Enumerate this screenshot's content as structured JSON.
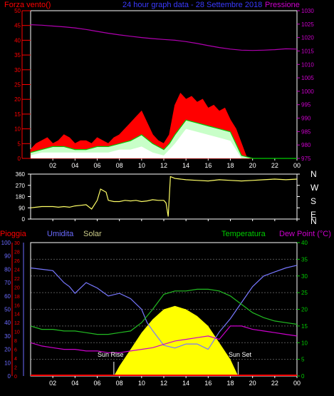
{
  "colors": {
    "background": "#000000",
    "axis_red": "#ff0000",
    "axis_magenta": "#cc00cc",
    "axis_blue": "#6b6bff",
    "axis_green": "#00cc00",
    "wind": "#ff0000",
    "gust": "#c8ffc8",
    "wind_avg": "#00cc00",
    "pressure": "#b000b0",
    "direction": "#ffff66",
    "humidity": "#7777ff",
    "temperature": "#22bb22",
    "dewpoint": "#cc00cc",
    "solar": "#ffff00",
    "rain": "#ff0000",
    "grid": "#555555"
  },
  "header": {
    "wind_label": "Forza vento()",
    "title": "24 hour graph data - 28 Settembre 2018",
    "pressure_label": "Pressione"
  },
  "panel3_labels": {
    "rain": "Pioggia",
    "humidity": "Umidita",
    "solar": "Solar",
    "temperature": "Temperatura",
    "dewpoint": "Dew Point (°C)"
  },
  "compass": [
    "N",
    "W",
    "S",
    "E",
    "N"
  ],
  "x_ticks": [
    "02",
    "04",
    "06",
    "08",
    "10",
    "12",
    "14",
    "16",
    "18",
    "20",
    "22",
    "00"
  ],
  "annotations": {
    "sunrise": "Sun Rise",
    "sunset": "Sun Set"
  },
  "chart_data": [
    {
      "type": "line",
      "title": "24 hour graph data - 28 Settembre 2018",
      "x_label": "hour",
      "x_range": [
        0,
        24
      ],
      "y_left_label": "Forza vento()",
      "y_left_ticks": [
        0,
        5,
        10,
        15,
        20,
        25,
        30,
        35,
        40,
        45,
        50
      ],
      "y_left_range": [
        0,
        50
      ],
      "y_right_label": "Pressione",
      "y_right_ticks": [
        975,
        980,
        985,
        990,
        995,
        1000,
        1005,
        1010,
        1015,
        1020,
        1025,
        1030
      ],
      "y_right_range": [
        975,
        1030
      ],
      "series": [
        {
          "name": "Pressione",
          "axis": "right",
          "x": [
            0,
            1,
            2,
            3,
            4,
            5,
            6,
            7,
            8,
            9,
            10,
            11,
            12,
            13,
            14,
            15,
            16,
            17,
            18,
            19,
            20,
            21,
            22,
            23,
            24
          ],
          "values": [
            1024.8,
            1024.6,
            1024.3,
            1024.0,
            1023.6,
            1023.0,
            1022.3,
            1021.6,
            1021.0,
            1020.5,
            1020.0,
            1019.6,
            1019.3,
            1019.0,
            1018.5,
            1017.8,
            1017.0,
            1016.3,
            1015.7,
            1015.3,
            1015.2,
            1015.3,
            1015.5,
            1015.8,
            1015.7
          ]
        },
        {
          "name": "Wind gust",
          "x": [
            0,
            0.5,
            1,
            1.5,
            2,
            2.5,
            3,
            3.5,
            4,
            4.5,
            5,
            5.5,
            6,
            6.5,
            7,
            7.5,
            8,
            8.5,
            9,
            9.5,
            10,
            10.5,
            11,
            11.5,
            12,
            12.5,
            13,
            13.5,
            14,
            14.5,
            15,
            15.5,
            16,
            16.5,
            17,
            17.5,
            18,
            18.5,
            19,
            19.5,
            20,
            24
          ],
          "values": [
            3,
            5,
            6,
            7,
            5,
            6,
            8,
            7,
            5,
            6,
            6,
            5,
            7,
            6,
            5,
            7,
            8,
            10,
            12,
            14,
            16,
            12,
            8,
            6,
            5,
            8,
            18,
            22,
            20,
            21,
            19,
            20,
            17,
            18,
            16,
            17,
            13,
            10,
            5,
            0,
            0,
            0
          ]
        },
        {
          "name": "Wind avg",
          "x": [
            0,
            1,
            2,
            3,
            4,
            5,
            6,
            7,
            8,
            9,
            10,
            11,
            12,
            12.5,
            13,
            14,
            15,
            16,
            17,
            18,
            18.5,
            19,
            20,
            24
          ],
          "values": [
            2,
            3,
            4,
            4,
            3,
            3,
            4,
            4,
            5,
            6,
            8,
            5,
            3,
            5,
            8,
            13,
            12,
            11,
            10,
            9,
            5,
            1,
            0,
            0
          ]
        },
        {
          "name": "Wind min",
          "x": [
            0,
            1,
            2,
            3,
            4,
            5,
            6,
            7,
            8,
            9,
            10,
            11,
            12,
            12.5,
            13,
            14,
            15,
            16,
            17,
            18,
            18.5,
            19,
            20,
            24
          ],
          "values": [
            1,
            2,
            2,
            2,
            2,
            2,
            2,
            2,
            3,
            3,
            4,
            2,
            1,
            3,
            5,
            10,
            9,
            8,
            7,
            6,
            3,
            0,
            0,
            0
          ]
        }
      ]
    },
    {
      "type": "line",
      "title": "",
      "x_range": [
        0,
        24
      ],
      "y_ticks": [
        0,
        90,
        180,
        270,
        360
      ],
      "y_range": [
        0,
        360
      ],
      "series": [
        {
          "name": "Wind direction",
          "x": [
            0,
            0.5,
            1,
            1.5,
            2,
            2.5,
            3,
            3.5,
            4,
            4.5,
            5,
            5.5,
            6,
            6.3,
            6.8,
            7,
            7.5,
            8,
            8.5,
            9,
            9.5,
            10,
            10.5,
            11,
            11.5,
            12,
            12.2,
            12.4,
            12.6,
            13,
            13.5,
            14,
            15,
            16,
            17,
            18,
            19,
            20,
            21,
            22,
            23,
            24
          ],
          "values": [
            90,
            95,
            100,
            100,
            100,
            95,
            100,
            95,
            105,
            110,
            115,
            80,
            150,
            240,
            215,
            150,
            140,
            140,
            150,
            145,
            150,
            140,
            145,
            155,
            150,
            150,
            130,
            20,
            340,
            325,
            320,
            315,
            310,
            305,
            315,
            310,
            305,
            310,
            315,
            320,
            315,
            320
          ]
        }
      ]
    },
    {
      "type": "line",
      "title": "",
      "x_range": [
        0,
        24
      ],
      "y_left_outer_label": "Pioggia",
      "y_left_outer_ticks": [
        0,
        2,
        4,
        6,
        8,
        10,
        12,
        14,
        16,
        18,
        20,
        22,
        24,
        26,
        28,
        30
      ],
      "y_left_outer_range": [
        0,
        30
      ],
      "y_left_inner_label": "Umidita",
      "y_left_inner_ticks": [
        0,
        10,
        20,
        30,
        40,
        50,
        60,
        70,
        80,
        90,
        100
      ],
      "y_left_inner_range": [
        0,
        100
      ],
      "y_right_label": "Dew Point (°C)",
      "y_right_ticks": [
        0,
        5,
        10,
        15,
        20,
        25,
        30,
        35,
        40
      ],
      "y_right_range": [
        0,
        40
      ],
      "series": [
        {
          "name": "Umidita",
          "axis": "humidity",
          "x": [
            0,
            1,
            2,
            3,
            3.5,
            4,
            5,
            6,
            7,
            8,
            9,
            10,
            10.5,
            11,
            12,
            13,
            14,
            15,
            16,
            17,
            18,
            19,
            20,
            21,
            22,
            23,
            24
          ],
          "values": [
            81,
            80,
            79,
            70,
            67,
            62,
            70,
            66,
            60,
            62,
            58,
            50,
            40,
            34,
            23,
            21,
            24,
            24,
            20,
            33,
            43,
            55,
            67,
            75,
            78,
            81,
            83
          ]
        },
        {
          "name": "Temperatura",
          "axis": "right",
          "x": [
            0,
            1,
            2,
            3,
            4,
            5,
            6,
            7,
            8,
            9,
            10,
            11,
            12,
            13,
            14,
            15,
            16,
            17,
            18,
            19,
            20,
            21,
            22,
            23,
            24
          ],
          "values": [
            15,
            14,
            14,
            13.5,
            13.5,
            13,
            12.5,
            12.5,
            13,
            13.5,
            16,
            20,
            24.5,
            25.5,
            25.5,
            26,
            26,
            25.5,
            24,
            21.5,
            19,
            17.5,
            16.5,
            16,
            15.5
          ]
        },
        {
          "name": "Dew Point",
          "axis": "right",
          "x": [
            0,
            1,
            2,
            3,
            4,
            5,
            6,
            7,
            8,
            9,
            10,
            11,
            12,
            13,
            14,
            15,
            16,
            17,
            18,
            19,
            20,
            21,
            22,
            23,
            24
          ],
          "values": [
            10,
            9,
            8.5,
            8,
            8,
            7.5,
            7.5,
            7,
            7,
            7.5,
            8,
            8.5,
            9.5,
            10.5,
            11,
            11.5,
            12,
            11,
            15,
            15,
            14,
            13.5,
            13,
            12.5,
            12
          ]
        },
        {
          "name": "Solar",
          "type": "area",
          "x": [
            7.5,
            8,
            9,
            10,
            11,
            12,
            13,
            14,
            15,
            16,
            17,
            18,
            18.7
          ],
          "values": [
            0,
            3,
            8,
            13,
            17,
            20,
            21,
            20,
            18,
            15,
            10,
            5,
            0
          ]
        },
        {
          "name": "Pioggia",
          "type": "area",
          "x": [
            0,
            24
          ],
          "values": [
            0,
            0
          ]
        }
      ]
    }
  ]
}
